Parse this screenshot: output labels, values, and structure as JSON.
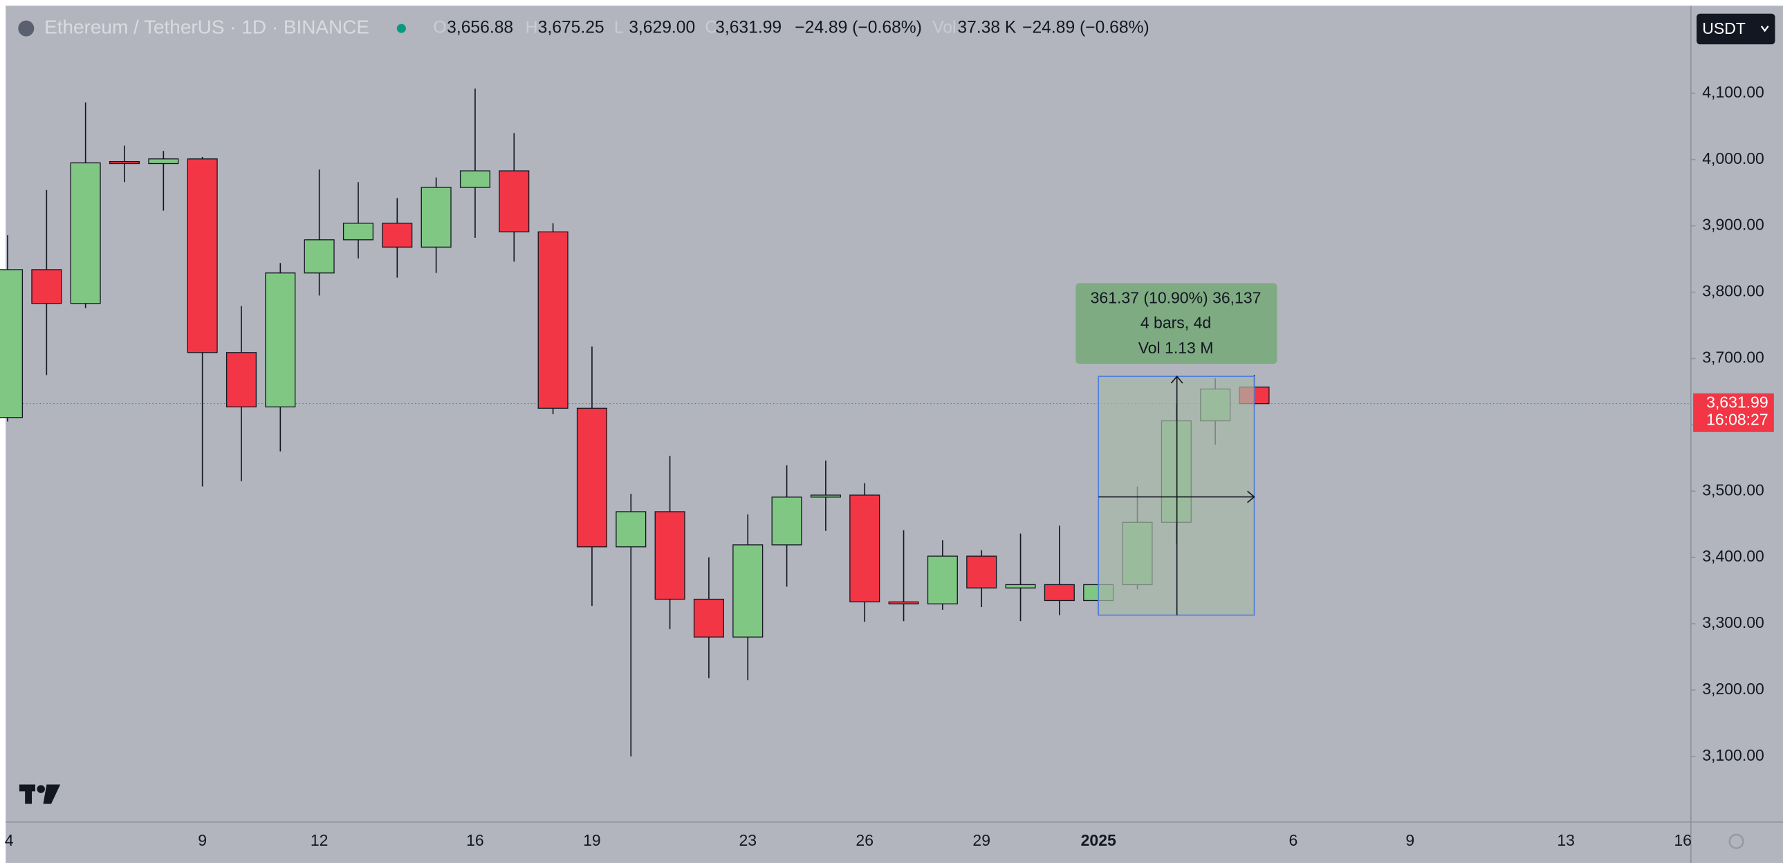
{
  "chart_data": {
    "type": "candlestick",
    "title": "Ethereum / TetherUS · 1D · BINANCE",
    "legend_items": [
      {
        "key": "O",
        "value": "3,656.88"
      },
      {
        "key": "H",
        "value": "3,675.25"
      },
      {
        "key": "L",
        "value": "3,629.00"
      },
      {
        "key": "C",
        "value": "3,631.99"
      }
    ],
    "change": "−24.89 (−0.68%)",
    "volume_key": "Vol",
    "volume": "37.38 K",
    "volume_change": "−24.89 (−0.68%)",
    "currency_button": "USDT",
    "categories": [
      "4",
      null,
      null,
      null,
      null,
      "9",
      null,
      null,
      "12",
      null,
      null,
      null,
      "16",
      null,
      null,
      "19",
      null,
      null,
      null,
      "23",
      null,
      null,
      "26",
      null,
      null,
      "29",
      null,
      null,
      "2025",
      null,
      null,
      null,
      null,
      "6",
      null,
      null,
      "9",
      null,
      null,
      null,
      "13",
      null,
      null,
      "16"
    ],
    "open": [
      3611,
      3834,
      3783,
      3997,
      3994,
      4001,
      3709,
      3627,
      3829,
      3879,
      3904,
      3868,
      3958,
      3983,
      3891,
      3625,
      3416,
      3469,
      3337,
      3280,
      3419,
      3491,
      3494,
      3333,
      3330,
      3402,
      3354,
      3359,
      3335,
      3359,
      3453,
      3606,
      3656.88,
      null,
      null,
      null,
      null,
      null,
      null,
      null,
      null,
      null,
      null,
      null
    ],
    "high": [
      3886,
      3954,
      4086,
      4021,
      4013,
      4004,
      3779,
      3844,
      3985,
      3966,
      3942,
      3973,
      4107,
      4040,
      3904,
      3718,
      3496,
      3553,
      3400,
      3465,
      3539,
      3546,
      3512,
      3441,
      3426,
      3411,
      3436,
      3448,
      3359,
      3507,
      3632,
      3670,
      3675.25,
      null,
      null,
      null,
      null,
      null,
      null,
      null,
      null,
      null,
      null,
      null
    ],
    "low": [
      3605,
      3675,
      3776,
      3966,
      3923,
      3507,
      3515,
      3560,
      3795,
      3851,
      3822,
      3829,
      3882,
      3846,
      3616,
      3327,
      3100,
      3292,
      3218,
      3215,
      3356,
      3440,
      3303,
      3304,
      3321,
      3325,
      3304,
      3313,
      3313,
      3352,
      3420,
      3570,
      3629.0,
      null,
      null,
      null,
      null,
      null,
      null,
      null,
      null,
      null,
      null,
      null
    ],
    "close": [
      3834,
      3783,
      3995,
      3994,
      4001,
      3709,
      3627,
      3829,
      3879,
      3904,
      3868,
      3958,
      3983,
      3891,
      3625,
      3416,
      3469,
      3337,
      3280,
      3419,
      3491,
      3494,
      3333,
      3330,
      3402,
      3354,
      3359,
      3335,
      3359,
      3453,
      3606,
      3654,
      3631.99,
      null,
      null,
      null,
      null,
      null,
      null,
      null,
      null,
      null,
      null,
      null
    ],
    "up_color": "#81c784",
    "down_color": "#f23645",
    "ylim": [
      3001,
      4232
    ],
    "yticks": [
      {
        "value": 3100,
        "label": "3,100.00"
      },
      {
        "value": 3200,
        "label": "3,200.00"
      },
      {
        "value": 3300,
        "label": "3,300.00"
      },
      {
        "value": 3400,
        "label": "3,400.00"
      },
      {
        "value": 3500,
        "label": "3,500.00"
      },
      {
        "value": 3600,
        "label": "3,600.00"
      },
      {
        "value": 3700,
        "label": "3,700.00"
      },
      {
        "value": 3800,
        "label": "3,800.00"
      },
      {
        "value": 3900,
        "label": "3,900.00"
      },
      {
        "value": 4000,
        "label": "4,000.00"
      },
      {
        "value": 4100,
        "label": "4,100.00"
      }
    ],
    "grid": false,
    "last_price": {
      "value": 3631.99,
      "label": "3,631.99"
    },
    "countdown": "16:08:27",
    "measure": {
      "line1": "361.37 (10.90%) 36,137",
      "line2": "4 bars, 4d",
      "line3": "Vol 1.13 M"
    }
  }
}
